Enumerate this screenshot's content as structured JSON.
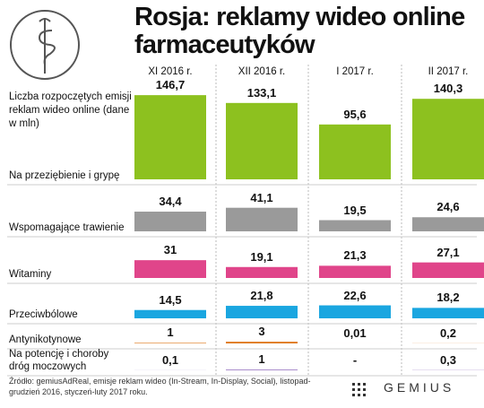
{
  "chart_data": {
    "type": "bar",
    "title": "Rosja: reklamy wideo online farmaceutyków",
    "subtitle": "Liczba rozpoczętych emisji reklam wideo online (dane w mln)",
    "categories": [
      "XI 2016 r.",
      "XII 2016 r.",
      "I 2017 r.",
      "II 2017 r."
    ],
    "series": [
      {
        "name": "Na przeziębienie i grypę",
        "color": "#8dc11f",
        "values": [
          146.7,
          133.1,
          95.6,
          140.3
        ],
        "value_labels": [
          "146,7",
          "133,1",
          "95,6",
          "140,3"
        ]
      },
      {
        "name": "Wspomagające trawienie",
        "color": "#9a9a9a",
        "values": [
          34.4,
          41.1,
          19.5,
          24.6
        ],
        "value_labels": [
          "34,4",
          "41,1",
          "19,5",
          "24,6"
        ]
      },
      {
        "name": "Witaminy",
        "color": "#e0458a",
        "values": [
          31,
          19.1,
          21.3,
          27.1
        ],
        "value_labels": [
          "31",
          "19,1",
          "21,3",
          "27,1"
        ]
      },
      {
        "name": "Przeciwbólowe",
        "color": "#1aa6e0",
        "values": [
          14.5,
          21.8,
          22.6,
          18.2
        ],
        "value_labels": [
          "14,5",
          "21,8",
          "22,6",
          "18,2"
        ]
      },
      {
        "name": "Antynikotynowe",
        "color": "#e07b20",
        "values": [
          1,
          3,
          0.01,
          0.2
        ],
        "value_labels": [
          "1",
          "3",
          "0,01",
          "0,2"
        ]
      },
      {
        "name": "Na potencję i choroby dróg moczowych",
        "color": "#7b4fb0",
        "values": [
          0.1,
          1,
          null,
          0.3
        ],
        "value_labels": [
          "0,1",
          "1",
          "-",
          "0,3"
        ]
      }
    ],
    "source": "Źródło: gemiusAdReal, emisje reklam wideo (In-Stream, In-Display, Social), listopad-grudzień 2016, styczeń-luty 2017 roku.",
    "logo": "GEMIUS"
  }
}
